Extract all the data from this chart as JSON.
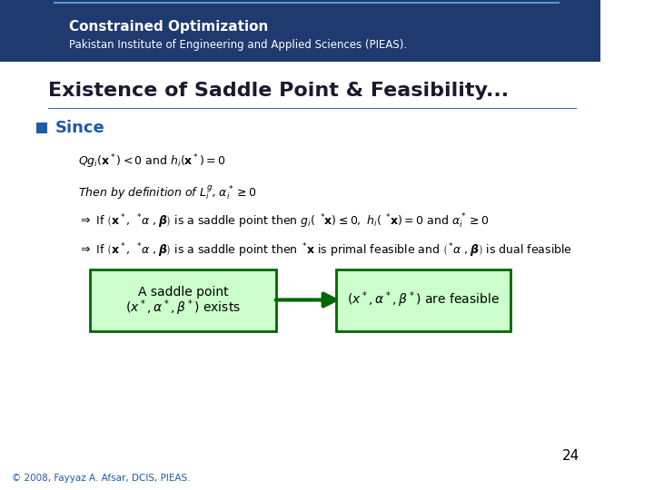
{
  "header_bg_color": "#1e3a6e",
  "header_title": "Constrained Optimization",
  "header_subtitle": "Pakistan Institute of Engineering and Applied Sciences (PIEAS).",
  "slide_bg_color": "#ffffff",
  "title_text": "Existence of Saddle Point & Feasibility...",
  "title_color": "#1a1a2e",
  "bullet_color": "#1e5ca8",
  "bullet_text": "Since",
  "line1": "$Qg_i(\\mathbf{x}^*) < 0$ and $h_i(\\mathbf{x}^*) = 0$",
  "line2": "Then by definition of $L_i^g$, $\\alpha_i^* \\geq 0$",
  "line3": "$\\Rightarrow$ If $(\\mathbf{x}^*,\\ {}^*\\!\\alpha\\ ,\\boldsymbol{\\beta})$ is a saddle point then $g_i(\\ {}^*\\!\\mathbf{x}) \\leq 0, h_i(\\ {}^*\\!\\mathbf{x}) = 0$ and $\\alpha_i^* \\geq 0$",
  "line4": "$\\Rightarrow$ If $(\\mathbf{x}^*,\\ {}^*\\!\\alpha\\ ,\\boldsymbol{\\beta})$ is a saddle point then ${}^*\\!\\mathbf{x}$ is primal feasible and $({}^*\\!\\alpha\\ ,\\boldsymbol{\\beta})$ is dual feasible",
  "box1_text": "A saddle point\n$(x^*,\\alpha^*,\\beta^*)$ exists",
  "box2_text": "$(x^*,\\alpha^*,\\beta^*)$ are feasible",
  "box_bg_color": "#ccffcc",
  "box_border_color": "#006600",
  "arrow_color": "#006600",
  "footer_text": "© 2008, Fayyaz A. Afsar, DCIS, PIEAS.",
  "footer_color": "#1e5ca8",
  "page_number": "24",
  "header_title_color": "#ffffff",
  "header_subtitle_color": "#ffffff"
}
